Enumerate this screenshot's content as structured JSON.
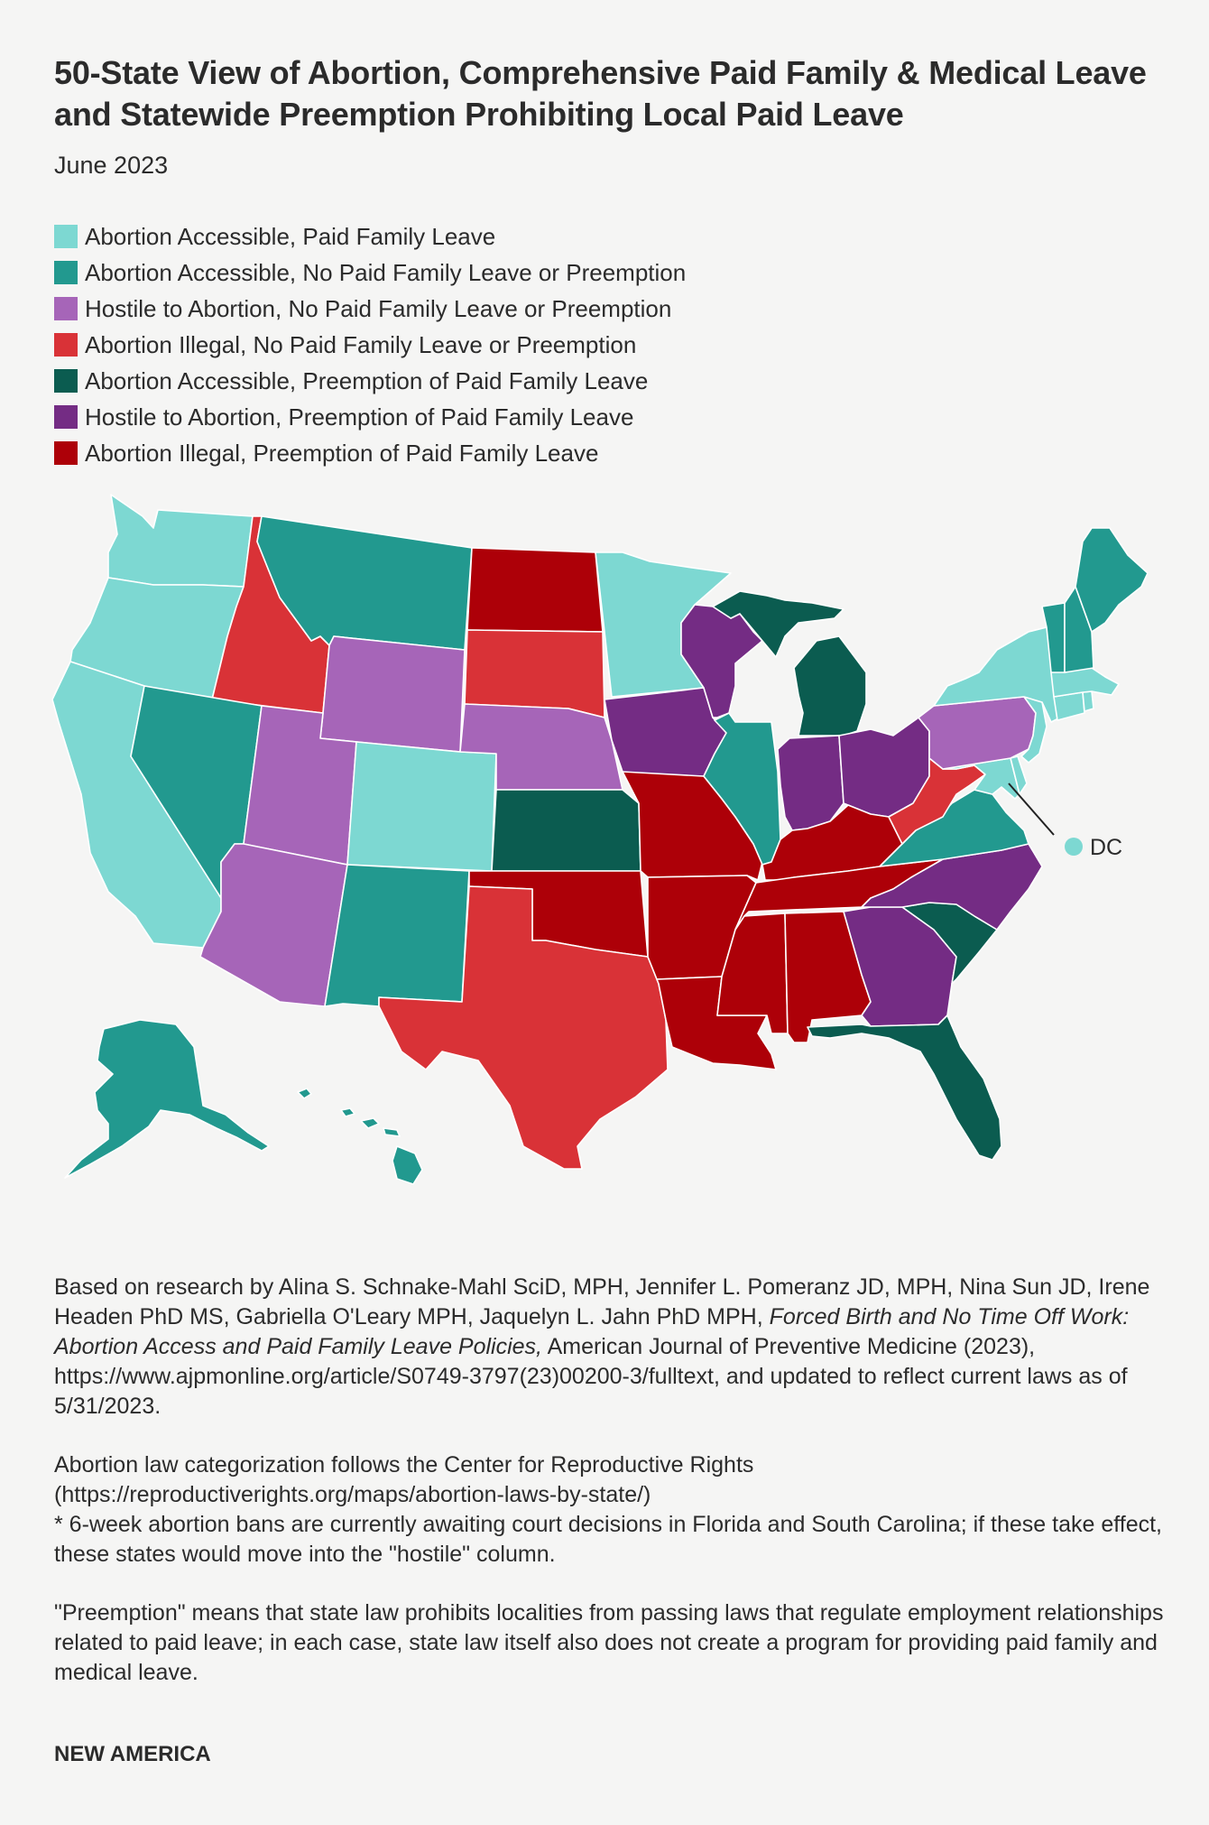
{
  "title": "50-State View of Abortion, Comprehensive Paid Family & Medical Leave and Statewide Preemption Prohibiting Local Paid Leave",
  "subtitle": "June 2023",
  "colors": {
    "accessible_pfl": "#7dd8d2",
    "accessible_none": "#22998f",
    "hostile_none": "#a665b8",
    "illegal_none": "#d93237",
    "accessible_preempt": "#0b5c50",
    "hostile_preempt": "#742c84",
    "illegal_preempt": "#ad0008"
  },
  "legend": [
    {
      "key": "accessible_pfl",
      "label": "Abortion Accessible, Paid Family Leave"
    },
    {
      "key": "accessible_none",
      "label": "Abortion Accessible, No Paid Family Leave or Preemption"
    },
    {
      "key": "hostile_none",
      "label": "Hostile to Abortion, No Paid Family Leave or Preemption"
    },
    {
      "key": "illegal_none",
      "label": "Abortion Illegal, No Paid Family Leave or Preemption"
    },
    {
      "key": "accessible_preempt",
      "label": "Abortion Accessible, Preemption of Paid Family Leave"
    },
    {
      "key": "hostile_preempt",
      "label": "Hostile to Abortion, Preemption of Paid Family Leave"
    },
    {
      "key": "illegal_preempt",
      "label": "Abortion Illegal, Preemption of Paid Family Leave"
    }
  ],
  "states": {
    "WA": "accessible_pfl",
    "OR": "accessible_pfl",
    "CA": "accessible_pfl",
    "CO": "accessible_pfl",
    "MN": "accessible_pfl",
    "NY": "accessible_pfl",
    "NJ": "accessible_pfl",
    "MA": "accessible_pfl",
    "CT": "accessible_pfl",
    "RI": "accessible_pfl",
    "MD": "accessible_pfl",
    "DE": "accessible_pfl",
    "NV": "accessible_none",
    "MT": "accessible_none",
    "NM": "accessible_none",
    "IL": "accessible_none",
    "VA": "accessible_none",
    "ME": "accessible_none",
    "NH": "accessible_none",
    "VT": "accessible_none",
    "AK": "accessible_none",
    "HI": "accessible_none",
    "WY": "hostile_none",
    "UT": "hostile_none",
    "AZ": "hostile_none",
    "NE": "hostile_none",
    "PA": "hostile_none",
    "ID": "illegal_none",
    "SD": "illegal_none",
    "TX": "illegal_none",
    "WV": "illegal_none",
    "KS": "accessible_preempt",
    "MI": "accessible_preempt",
    "SC": "accessible_preempt",
    "FL": "accessible_preempt",
    "WI": "hostile_preempt",
    "IA": "hostile_preempt",
    "IN": "hostile_preempt",
    "OH": "hostile_preempt",
    "GA": "hostile_preempt",
    "NC": "hostile_preempt",
    "ND": "illegal_preempt",
    "OK": "illegal_preempt",
    "MO": "illegal_preempt",
    "AR": "illegal_preempt",
    "LA": "illegal_preempt",
    "MS": "illegal_preempt",
    "AL": "illegal_preempt",
    "TN": "illegal_preempt",
    "KY": "illegal_preempt",
    "DC": "accessible_pfl"
  },
  "dc_label": "DC",
  "notes": {
    "p1_before": "Based on research by Alina S. Schnake-Mahl SciD, MPH, Jennifer L. Pomeranz JD, MPH, Nina Sun JD, Irene Headen PhD MS, Gabriella O'Leary MPH, Jaquelyn L. Jahn PhD MPH, ",
    "p1_italic": "Forced Birth and No Time Off Work: Abortion Access and Paid Family Leave Policies,",
    "p1_after": " American Journal of Preventive Medicine (2023), https://www.ajpmonline.org/article/S0749-3797(23)00200-3/fulltext, and updated to reflect current laws as of 5/31/2023.",
    "p2_line1": "Abortion law categorization follows the Center for Reproductive Rights",
    "p2_line2": "(https://reproductiverights.org/maps/abortion-laws-by-state/)",
    "p2_line3": "* 6-week abortion bans are currently awaiting court decisions in Florida and South Carolina; if these take effect, these states would move into the \"hostile\" column.",
    "p3": "\"Preemption\" means that state law prohibits localities from passing laws that regulate employment relationships related to paid leave; in each case, state law itself also does not create a program for providing paid family and medical leave."
  },
  "brand": "NEW AMERICA"
}
